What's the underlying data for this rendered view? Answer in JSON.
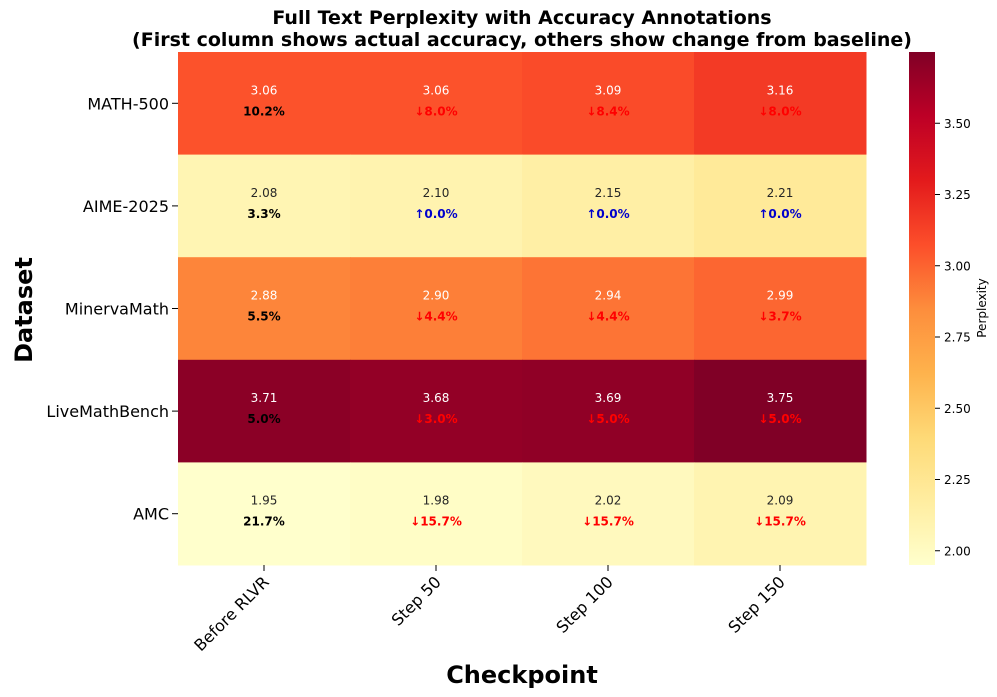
{
  "chart_data": {
    "type": "heatmap",
    "title": "Full Text Perplexity with Accuracy Annotations",
    "subtitle": "(First column shows actual accuracy, others show change from baseline)",
    "xlabel": "Checkpoint",
    "ylabel": "Dataset",
    "x_categories": [
      "Before RLVR",
      "Step 50",
      "Step 100",
      "Step 150"
    ],
    "y_categories": [
      "MATH-500",
      "AIME-2025",
      "MinervaMath",
      "LiveMathBench",
      "AMC"
    ],
    "values": [
      [
        3.06,
        3.06,
        3.09,
        3.16
      ],
      [
        2.08,
        2.1,
        2.15,
        2.21
      ],
      [
        2.88,
        2.9,
        2.94,
        2.99
      ],
      [
        3.71,
        3.68,
        3.69,
        3.75
      ],
      [
        1.95,
        1.98,
        2.02,
        2.09
      ]
    ],
    "value_labels": [
      [
        "3.06",
        "3.06",
        "3.09",
        "3.16"
      ],
      [
        "2.08",
        "2.10",
        "2.15",
        "2.21"
      ],
      [
        "2.88",
        "2.90",
        "2.94",
        "2.99"
      ],
      [
        "3.71",
        "3.68",
        "3.69",
        "3.75"
      ],
      [
        "1.95",
        "1.98",
        "2.02",
        "2.09"
      ]
    ],
    "accuracy_labels": [
      [
        "10.2%",
        "↓8.0%",
        "↓8.4%",
        "↓8.0%"
      ],
      [
        "3.3%",
        "↑0.0%",
        "↑0.0%",
        "↑0.0%"
      ],
      [
        "5.5%",
        "↓4.4%",
        "↓4.4%",
        "↓3.7%"
      ],
      [
        "5.0%",
        "↓3.0%",
        "↓5.0%",
        "↓5.0%"
      ],
      [
        "21.7%",
        "↓15.7%",
        "↓15.7%",
        "↓15.7%"
      ]
    ],
    "colorbar": {
      "label": "Perplexity",
      "colormap": "YlOrRd",
      "range": [
        1.95,
        3.75
      ],
      "ticks": [
        2.0,
        2.25,
        2.5,
        2.75,
        3.0,
        3.25,
        3.5
      ],
      "tick_labels": [
        "2.00",
        "2.25",
        "2.50",
        "2.75",
        "3.00",
        "3.25",
        "3.50"
      ]
    },
    "colors": {
      "baseline_acc": "#000000",
      "decrease": "#ff0000",
      "increase": "#0000cc"
    }
  }
}
